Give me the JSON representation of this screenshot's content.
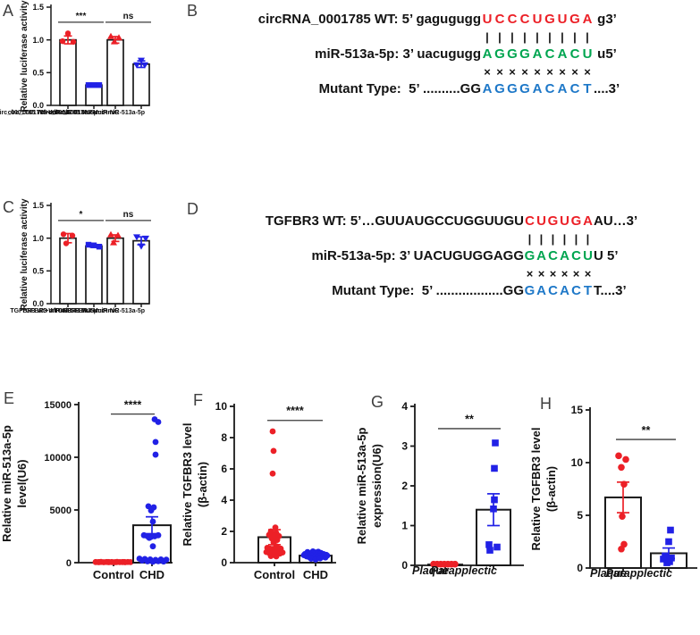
{
  "panel_labels": {
    "A": "A",
    "B": "B",
    "C": "C",
    "D": "D",
    "E": "E",
    "F": "F",
    "G": "G",
    "H": "H"
  },
  "colors": {
    "red": "#EC2027",
    "blue": "#2121E6",
    "green": "#00A550",
    "seq_blue": "#1E78C8",
    "axis": "#1a1a1a"
  },
  "chart_data": [
    {
      "id": "A",
      "type": "bar",
      "title": "",
      "ylabel_lines": [
        "Relative luciferase activity"
      ],
      "ylim": [
        0,
        1.5
      ],
      "yticks": [
        {
          "v": 0,
          "t": "0.0"
        },
        {
          "v": 0.5,
          "t": "0.5"
        },
        {
          "v": 1,
          "t": "1.0"
        },
        {
          "v": 1.5,
          "t": "1.5"
        }
      ],
      "groups": [
        {
          "label": "circ_0001785 Wt+miR-NC",
          "color": "#EC2027",
          "marker": "circle",
          "bar": 1.0,
          "err": 0.06,
          "points": [
            [
              0,
              1.1
            ],
            [
              -6,
              0.98
            ],
            [
              6,
              0.97
            ]
          ]
        },
        {
          "label": "circ_0001785 Wt+miR-513a-5p",
          "color": "#2121E6",
          "marker": "square",
          "bar": 0.31,
          "err": 0.012,
          "points": [
            [
              -6,
              0.31
            ],
            [
              0,
              0.31
            ],
            [
              6,
              0.31
            ]
          ]
        },
        {
          "label": "circ_0001785 Mut+miR-NC",
          "color": "#EC2027",
          "marker": "triangle-up",
          "bar": 1.0,
          "err": 0.05,
          "points": [
            [
              -5,
              1.05
            ],
            [
              4,
              1.03
            ],
            [
              -1,
              0.97
            ]
          ]
        },
        {
          "label": "circ_0001785 Mut+miR-513a-5p",
          "color": "#2121E6",
          "marker": "triangle-down",
          "bar": 0.63,
          "err": 0.05,
          "points": [
            [
              0,
              0.69
            ],
            [
              -5,
              0.62
            ],
            [
              4,
              0.62
            ]
          ]
        }
      ],
      "sig": [
        {
          "a": 0,
          "b": 1,
          "label": "***",
          "line_y": 1.27,
          "text_y": 1.37
        },
        {
          "a": 2,
          "b": 3,
          "label": "ns",
          "line_y": 1.27,
          "text_y": 1.37
        }
      ]
    },
    {
      "id": "C",
      "type": "bar",
      "title": "",
      "ylabel_lines": [
        "Relative luciferase activity"
      ],
      "ylim": [
        0,
        1.5
      ],
      "yticks": [
        {
          "v": 0,
          "t": "0.0"
        },
        {
          "v": 0.5,
          "t": "0.5"
        },
        {
          "v": 1,
          "t": "1.0"
        },
        {
          "v": 1.5,
          "t": "1.5"
        }
      ],
      "groups": [
        {
          "label": "TGFBR3 Wt+miR-NC",
          "color": "#EC2027",
          "marker": "circle",
          "bar": 1.0,
          "err": 0.07,
          "points": [
            [
              -5,
              1.06
            ],
            [
              5,
              1.04
            ],
            [
              -2,
              0.92
            ]
          ]
        },
        {
          "label": "TGFBR3 Wt+miR-513a-5p",
          "color": "#2121E6",
          "marker": "square",
          "bar": 0.88,
          "err": 0.02,
          "points": [
            [
              -6,
              0.9
            ],
            [
              0,
              0.89
            ],
            [
              6,
              0.87
            ]
          ]
        },
        {
          "label": "TGFBR3 Mut+miR-NC",
          "color": "#EC2027",
          "marker": "triangle-up",
          "bar": 1.0,
          "err": 0.05,
          "points": [
            [
              -5,
              1.05
            ],
            [
              3,
              1.04
            ],
            [
              -2,
              0.93
            ]
          ]
        },
        {
          "label": "TGFBR3 Mut+miR-513a-5p",
          "color": "#2121E6",
          "marker": "triangle-down",
          "bar": 0.96,
          "err": 0.06,
          "points": [
            [
              -5,
              1.02
            ],
            [
              5,
              1.0
            ],
            [
              0,
              0.88
            ]
          ]
        }
      ],
      "sig": [
        {
          "a": 0,
          "b": 1,
          "label": "*",
          "line_y": 1.27,
          "text_y": 1.37
        },
        {
          "a": 2,
          "b": 3,
          "label": "ns",
          "line_y": 1.27,
          "text_y": 1.37
        }
      ]
    },
    {
      "id": "E",
      "type": "bar-scatter",
      "title": "",
      "ylabel_lines": [
        "Relative miR-513a-5p",
        "level(U6)"
      ],
      "ylim": [
        0,
        15000
      ],
      "yticks": [
        {
          "v": 0,
          "t": "0"
        },
        {
          "v": 5000,
          "t": "5000"
        },
        {
          "v": 10000,
          "t": "10000"
        },
        {
          "v": 15000,
          "t": "15000"
        }
      ],
      "groups": [
        {
          "label": "Control",
          "color": "#EC2027",
          "marker": "circle",
          "bar": 70,
          "err": 0,
          "points": [
            [
              -20,
              60
            ],
            [
              -17,
              50
            ],
            [
              -14,
              70
            ],
            [
              -11,
              45
            ],
            [
              -8,
              65
            ],
            [
              -5,
              50
            ],
            [
              -2,
              60
            ],
            [
              1,
              45
            ],
            [
              4,
              70
            ],
            [
              7,
              55
            ],
            [
              10,
              60
            ],
            [
              13,
              45
            ],
            [
              16,
              65
            ],
            [
              19,
              55
            ],
            [
              -16,
              55
            ],
            [
              -6,
              58
            ],
            [
              3,
              52
            ],
            [
              12,
              62
            ]
          ]
        },
        {
          "label": "CHD",
          "color": "#2121E6",
          "marker": "circle",
          "bar": 3550,
          "err": 800,
          "points": [
            [
              3,
              13600
            ],
            [
              7,
              13350
            ],
            [
              4,
              11450
            ],
            [
              4,
              10250
            ],
            [
              -4,
              5350
            ],
            [
              2,
              5250
            ],
            [
              -1,
              4950
            ],
            [
              1,
              3900
            ],
            [
              -9,
              2600
            ],
            [
              -5,
              2500
            ],
            [
              -1,
              2450
            ],
            [
              3,
              2500
            ],
            [
              7,
              2600
            ],
            [
              -3,
              2350
            ],
            [
              1,
              1550
            ],
            [
              -14,
              380
            ],
            [
              -11,
              200
            ],
            [
              -8,
              350
            ],
            [
              -5,
              130
            ],
            [
              -2,
              300
            ],
            [
              1,
              90
            ],
            [
              4,
              260
            ],
            [
              7,
              140
            ],
            [
              10,
              310
            ],
            [
              13,
              110
            ],
            [
              16,
              280
            ]
          ]
        }
      ],
      "sig": [
        {
          "a": 0,
          "b": 1,
          "label": "****",
          "line_y": 14100,
          "text_y": 15000
        }
      ]
    },
    {
      "id": "F",
      "type": "bar-scatter",
      "title": "",
      "ylabel_lines": [
        "Relative TGFBR3 level",
        "(β-actin)"
      ],
      "ylim": [
        0,
        10
      ],
      "yticks": [
        {
          "v": 0,
          "t": "0"
        },
        {
          "v": 2,
          "t": "2"
        },
        {
          "v": 4,
          "t": "4"
        },
        {
          "v": 6,
          "t": "6"
        },
        {
          "v": 8,
          "t": "8"
        },
        {
          "v": 10,
          "t": "10"
        }
      ],
      "groups": [
        {
          "label": "Control",
          "color": "#EC2027",
          "marker": "circle",
          "bar": 1.63,
          "err": 0.48,
          "points": [
            [
              -2,
              8.4
            ],
            [
              -1,
              7.15
            ],
            [
              -2,
              5.7
            ],
            [
              1,
              2.25
            ],
            [
              -4,
              2.0
            ],
            [
              2,
              1.9
            ],
            [
              -6,
              1.78
            ],
            [
              0,
              1.75
            ],
            [
              5,
              1.7
            ],
            [
              -3,
              1.55
            ],
            [
              3,
              1.45
            ],
            [
              -1,
              1.3
            ],
            [
              2,
              1.05
            ],
            [
              -8,
              0.95
            ],
            [
              -5,
              0.9
            ],
            [
              -2,
              0.88
            ],
            [
              1,
              0.9
            ],
            [
              4,
              0.93
            ],
            [
              7,
              0.9
            ],
            [
              -9,
              0.68
            ],
            [
              -6,
              0.62
            ],
            [
              -3,
              0.58
            ],
            [
              0,
              0.6
            ],
            [
              3,
              0.63
            ],
            [
              6,
              0.58
            ],
            [
              9,
              0.65
            ],
            [
              -4,
              0.42
            ],
            [
              2,
              0.4
            ]
          ]
        },
        {
          "label": "CHD",
          "color": "#2121E6",
          "marker": "circle",
          "bar": 0.45,
          "err": 0.12,
          "points": [
            [
              -12,
              0.55
            ],
            [
              -9,
              0.68
            ],
            [
              -6,
              0.6
            ],
            [
              -3,
              0.72
            ],
            [
              0,
              0.65
            ],
            [
              3,
              0.7
            ],
            [
              6,
              0.62
            ],
            [
              9,
              0.55
            ],
            [
              12,
              0.5
            ],
            [
              -10,
              0.4
            ],
            [
              -7,
              0.35
            ],
            [
              -4,
              0.44
            ],
            [
              -1,
              0.38
            ],
            [
              2,
              0.35
            ],
            [
              5,
              0.42
            ],
            [
              8,
              0.38
            ],
            [
              11,
              0.33
            ],
            [
              -5,
              0.25
            ],
            [
              0,
              0.2
            ],
            [
              5,
              0.27
            ],
            [
              13,
              0.45
            ],
            [
              -13,
              0.48
            ]
          ]
        }
      ],
      "sig": [
        {
          "a": 0,
          "b": 1,
          "label": "****",
          "line_y": 9.1,
          "text_y": 9.75
        }
      ]
    },
    {
      "id": "G",
      "type": "bar-scatter",
      "title": "",
      "ylabel_lines": [
        "Relative miR-513a-5p",
        "expression(U6)"
      ],
      "ylim": [
        0,
        4
      ],
      "yticks": [
        {
          "v": 0,
          "t": "0"
        },
        {
          "v": 1,
          "t": "1"
        },
        {
          "v": 2,
          "t": "2"
        },
        {
          "v": 3,
          "t": "3"
        },
        {
          "v": 4,
          "t": "4"
        }
      ],
      "groups": [
        {
          "label": "Plaque",
          "color": "#EC2027",
          "marker": "circle",
          "bar": 0.02,
          "err": 0,
          "points": [
            [
              -13,
              0.03
            ],
            [
              -9,
              0.03
            ],
            [
              -5,
              0.03
            ],
            [
              -1,
              0.03
            ],
            [
              3,
              0.03
            ],
            [
              7,
              0.03
            ],
            [
              11,
              0.03
            ]
          ]
        },
        {
          "label": "Parapplectic",
          "color": "#2121E6",
          "marker": "square",
          "bar": 1.4,
          "err": 0.4,
          "points": [
            [
              2,
              3.08
            ],
            [
              1,
              2.44
            ],
            [
              1,
              1.65
            ],
            [
              0,
              1.42
            ],
            [
              -5,
              0.52
            ],
            [
              4,
              0.46
            ],
            [
              -4,
              0.38
            ]
          ]
        }
      ],
      "sig": [
        {
          "a": 0,
          "b": 1,
          "label": "**",
          "line_y": 3.44,
          "text_y": 3.68
        }
      ]
    },
    {
      "id": "H",
      "type": "bar-scatter",
      "title": "",
      "ylabel_lines": [
        "Relative TGFBR3 level",
        "(β-actin)"
      ],
      "ylim": [
        0,
        15
      ],
      "yticks": [
        {
          "v": 0,
          "t": "0"
        },
        {
          "v": 5,
          "t": "5"
        },
        {
          "v": 10,
          "t": "10"
        },
        {
          "v": 15,
          "t": "15"
        }
      ],
      "groups": [
        {
          "label": "Plaque",
          "color": "#EC2027",
          "marker": "circle",
          "bar": 6.7,
          "err": 1.45,
          "points": [
            [
              -5,
              10.65
            ],
            [
              3,
              10.3
            ],
            [
              -2,
              9.55
            ],
            [
              1,
              7.95
            ],
            [
              -1,
              4.9
            ],
            [
              1,
              2.25
            ],
            [
              -2,
              1.8
            ]
          ]
        },
        {
          "label": "Parapplectic",
          "color": "#2121E6",
          "marker": "square",
          "bar": 1.4,
          "err": 0.5,
          "points": [
            [
              2,
              3.6
            ],
            [
              0,
              2.5
            ],
            [
              -4,
              1.15
            ],
            [
              3,
              0.95
            ],
            [
              -6,
              0.85
            ],
            [
              1,
              0.6
            ],
            [
              -2,
              0.5
            ]
          ]
        }
      ],
      "sig": [
        {
          "a": 0,
          "b": 1,
          "label": "**",
          "line_y": 12.2,
          "text_y": 13.1
        }
      ]
    }
  ],
  "sequences": {
    "B": {
      "lines": [
        {
          "name": "wt-line",
          "left": "circRNA_0001785 WT: 5’ gagugugg",
          "cells": [
            "U",
            "C",
            "C",
            "C",
            "U",
            "G",
            "U",
            "G",
            "A"
          ],
          "cell_color": "#EC2027",
          "tail": " g3’"
        },
        {
          "name": "pairing-line",
          "row": "|",
          "count": 9
        },
        {
          "name": "mirna-line",
          "left": "miR-513a-5p: 3’ uacugugg",
          "cells": [
            "A",
            "G",
            "G",
            "G",
            "A",
            "C",
            "A",
            "C",
            "U"
          ],
          "cell_color": "#00A550",
          "tail": " u5’"
        },
        {
          "name": "mismatch-line",
          "row": "×",
          "count": 9
        },
        {
          "name": "mutant-line",
          "left": "Mutant Type:  5’ ..........GG",
          "cells": [
            "A",
            "G",
            "G",
            "G",
            "A",
            "C",
            "A",
            "C",
            "T"
          ],
          "cell_color": "#1E78C8",
          "tail": "....3’"
        }
      ]
    },
    "D": {
      "lines": [
        {
          "name": "wt-line",
          "left": "TGFBR3 WT: 5’…GUUAUGCCUGGUUGU",
          "cells": [
            "C",
            "U",
            "G",
            "U",
            "G",
            "A"
          ],
          "cell_color": "#EC2027",
          "tail": "AU…3’"
        },
        {
          "name": "pairing-line",
          "row": "|",
          "count": 6
        },
        {
          "name": "mirna-line",
          "left": "miR-513a-5p: 3’ UACUGUGGAGG",
          "cells": [
            "G",
            "A",
            "C",
            "A",
            "C",
            "U"
          ],
          "cell_color": "#00A550",
          "tail": "U 5’"
        },
        {
          "name": "mismatch-line",
          "row": "×",
          "count": 6
        },
        {
          "name": "mutant-line",
          "left": "Mutant Type:  5’ ..................GG",
          "cells": [
            "G",
            "A",
            "C",
            "A",
            "C",
            "T"
          ],
          "cell_color": "#1E78C8",
          "tail": "T....3’"
        }
      ]
    }
  }
}
